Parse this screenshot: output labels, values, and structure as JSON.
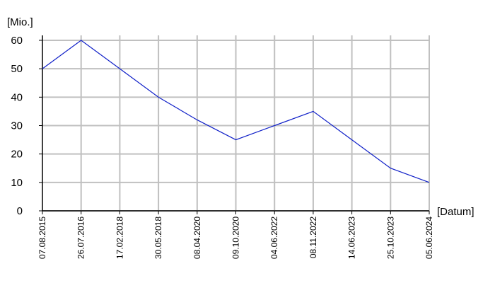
{
  "chart_data": {
    "type": "line",
    "y_label": "[Mio.]",
    "x_label": "[Datum]",
    "categories": [
      "07.08.2015",
      "26.07.2016",
      "17.02.2018",
      "30.05.2018",
      "08.04.2020",
      "09.10.2020",
      "04.06.2022",
      "08.11.2022",
      "14.06.2023",
      "25.10.2023",
      "05.06.2024"
    ],
    "values": [
      50,
      60,
      50,
      40,
      32,
      25,
      30,
      35,
      25,
      15,
      10
    ],
    "color": "#1020c8",
    "ylim": [
      0,
      60
    ],
    "yticks": [
      0,
      10,
      20,
      30,
      40,
      50,
      60
    ],
    "grid": true
  }
}
